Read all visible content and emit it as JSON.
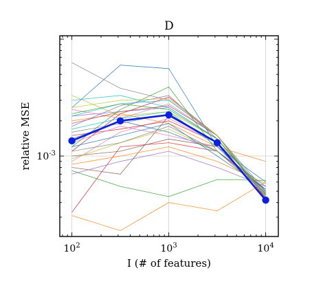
{
  "chart_data": {
    "type": "line",
    "title": "D",
    "xlabel": "I  (# of features)",
    "ylabel": "relative MSE",
    "xscale": "log",
    "yscale": "log",
    "xlim": [
      75,
      13500
    ],
    "ylim": [
      0.000205,
      0.0107
    ],
    "grid": true,
    "x": [
      100,
      316,
      1000,
      3162,
      10000
    ],
    "xticks": [
      {
        "value": 100,
        "base": "10",
        "exp": "2"
      },
      {
        "value": 1000,
        "base": "10",
        "exp": "3"
      },
      {
        "value": 10000,
        "base": "10",
        "exp": "4"
      }
    ],
    "yticks": [
      {
        "value": 0.001,
        "base": "10",
        "exp": "-3"
      }
    ],
    "highlight": {
      "color": "#0a1fe0",
      "values": [
        0.00135,
        0.002,
        0.00225,
        0.0013,
        0.00042
      ]
    },
    "series": [
      {
        "color": "#1f77b4",
        "values": [
          0.0026,
          0.006,
          0.0056,
          0.0012,
          0.0006
        ]
      },
      {
        "color": "#ff7f0e",
        "values": [
          0.00031,
          0.00023,
          0.0004,
          0.00034,
          0.0006
        ]
      },
      {
        "color": "#2ca02c",
        "values": [
          0.00075,
          0.00055,
          0.00045,
          0.00063,
          0.00062
        ]
      },
      {
        "color": "#d62728",
        "values": [
          0.00033,
          0.0012,
          0.0013,
          0.0011,
          0.00052
        ]
      },
      {
        "color": "#9467bd",
        "values": [
          0.0022,
          0.0024,
          0.0026,
          0.0014,
          0.00045
        ]
      },
      {
        "color": "#8c564b",
        "values": [
          0.0008,
          0.0007,
          0.0022,
          0.0013,
          0.0005
        ]
      },
      {
        "color": "#e377c2",
        "values": [
          0.0009,
          0.0016,
          0.0021,
          0.0013,
          0.00042
        ]
      },
      {
        "color": "#7f7f7f",
        "values": [
          0.0063,
          0.0038,
          0.003,
          0.0015,
          0.0005
        ]
      },
      {
        "color": "#bcbd22",
        "values": [
          0.0033,
          0.0022,
          0.0024,
          0.0014,
          0.00045
        ]
      },
      {
        "color": "#17becf",
        "values": [
          0.0022,
          0.0028,
          0.003,
          0.0015,
          0.00047
        ]
      },
      {
        "color": "#1f77b4",
        "values": [
          0.0014,
          0.002,
          0.0016,
          0.0011,
          0.00055
        ]
      },
      {
        "color": "#ff7f0e",
        "values": [
          0.002,
          0.0023,
          0.0019,
          0.0012,
          0.0009
        ]
      },
      {
        "color": "#2ca02c",
        "values": [
          0.0012,
          0.0025,
          0.0039,
          0.0011,
          0.00048
        ]
      },
      {
        "color": "#d62728",
        "values": [
          0.0011,
          0.0023,
          0.0032,
          0.0015,
          0.00043
        ]
      },
      {
        "color": "#9467bd",
        "values": [
          0.0018,
          0.0027,
          0.0033,
          0.0014,
          0.00046
        ]
      },
      {
        "color": "#8c564b",
        "values": [
          0.001,
          0.0011,
          0.0014,
          0.0012,
          0.0005
        ]
      },
      {
        "color": "#e377c2",
        "values": [
          0.0025,
          0.0021,
          0.0028,
          0.0015,
          0.00044
        ]
      },
      {
        "color": "#7f7f7f",
        "values": [
          0.0016,
          0.0019,
          0.0023,
          0.0013,
          0.00042
        ]
      },
      {
        "color": "#bcbd22",
        "values": [
          0.00095,
          0.0013,
          0.0017,
          0.0011,
          0.00048
        ]
      },
      {
        "color": "#17becf",
        "values": [
          0.003,
          0.0033,
          0.0026,
          0.0014,
          0.00046
        ]
      },
      {
        "color": "#1f77b4",
        "values": [
          0.0012,
          0.0015,
          0.0019,
          0.001,
          0.00052
        ]
      },
      {
        "color": "#ff7f0e",
        "values": [
          0.00085,
          0.001,
          0.0012,
          0.0009,
          0.00058
        ]
      },
      {
        "color": "#2ca02c",
        "values": [
          0.0023,
          0.0028,
          0.0025,
          0.0014,
          0.00047
        ]
      },
      {
        "color": "#d62728",
        "values": [
          0.0015,
          0.0017,
          0.002,
          0.0013,
          0.00043
        ]
      },
      {
        "color": "#9467bd",
        "values": [
          0.0007,
          0.0009,
          0.0011,
          0.0008,
          0.00055
        ]
      },
      {
        "color": "#8c564b",
        "values": [
          0.0019,
          0.0024,
          0.0027,
          0.0015,
          0.00044
        ]
      },
      {
        "color": "#e377c2",
        "values": [
          0.0013,
          0.0018,
          0.0015,
          0.0012,
          0.00046
        ]
      },
      {
        "color": "#7f7f7f",
        "values": [
          0.0011,
          0.0013,
          0.0018,
          0.0011,
          0.00049
        ]
      },
      {
        "color": "#bcbd22",
        "values": [
          0.0026,
          0.003,
          0.0031,
          0.0015,
          0.00045
        ]
      },
      {
        "color": "#17becf",
        "values": [
          0.0017,
          0.0021,
          0.0024,
          0.0012,
          0.00048
        ]
      }
    ]
  }
}
